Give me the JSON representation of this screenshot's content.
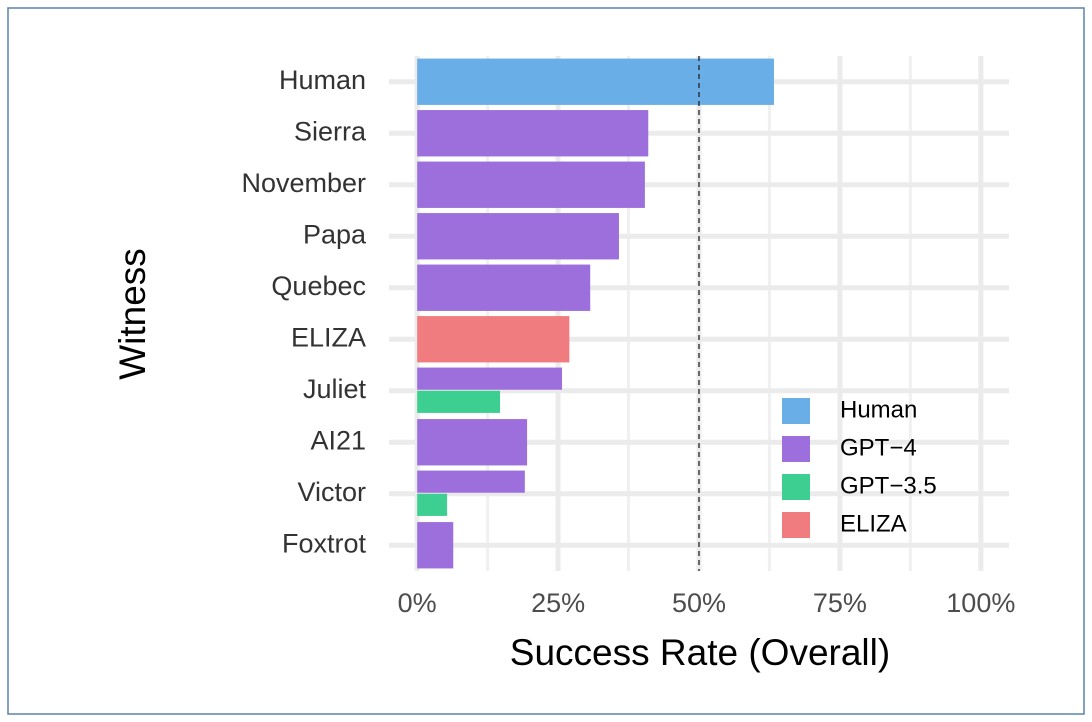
{
  "chart_data": {
    "type": "bar",
    "orientation": "horizontal",
    "xlabel": "Success Rate (Overall)",
    "ylabel": "Witness",
    "categories": [
      "Human",
      "Sierra",
      "November",
      "Papa",
      "Quebec",
      "ELIZA",
      "Juliet",
      "AI21",
      "Victor",
      "Foxtrot"
    ],
    "series": [
      {
        "name": "Human",
        "color": "#6aaee8",
        "values": [
          63.3,
          null,
          null,
          null,
          null,
          null,
          null,
          null,
          null,
          null
        ]
      },
      {
        "name": "GPT−4",
        "color": "#9c6fdc",
        "values": [
          null,
          41.0,
          40.4,
          35.8,
          30.7,
          null,
          25.7,
          19.5,
          19.1,
          6.4
        ]
      },
      {
        "name": "GPT−3.5",
        "color": "#3ccf91",
        "values": [
          null,
          null,
          null,
          null,
          null,
          null,
          14.7,
          null,
          5.3,
          null
        ]
      },
      {
        "name": "ELIZA",
        "color": "#f07c80",
        "values": [
          null,
          null,
          null,
          null,
          null,
          27.0,
          null,
          null,
          null,
          null
        ]
      }
    ],
    "xlim": [
      -5,
      105
    ],
    "xticks": [
      {
        "value": 0,
        "label": "0%"
      },
      {
        "value": 25,
        "label": "25%"
      },
      {
        "value": 50,
        "label": "50%"
      },
      {
        "value": 75,
        "label": "75%"
      },
      {
        "value": 100,
        "label": "100%"
      }
    ],
    "xminor": [
      12.5,
      37.5,
      62.5,
      87.5
    ],
    "vline": 50,
    "grid": true,
    "legend": "bottom-right"
  }
}
